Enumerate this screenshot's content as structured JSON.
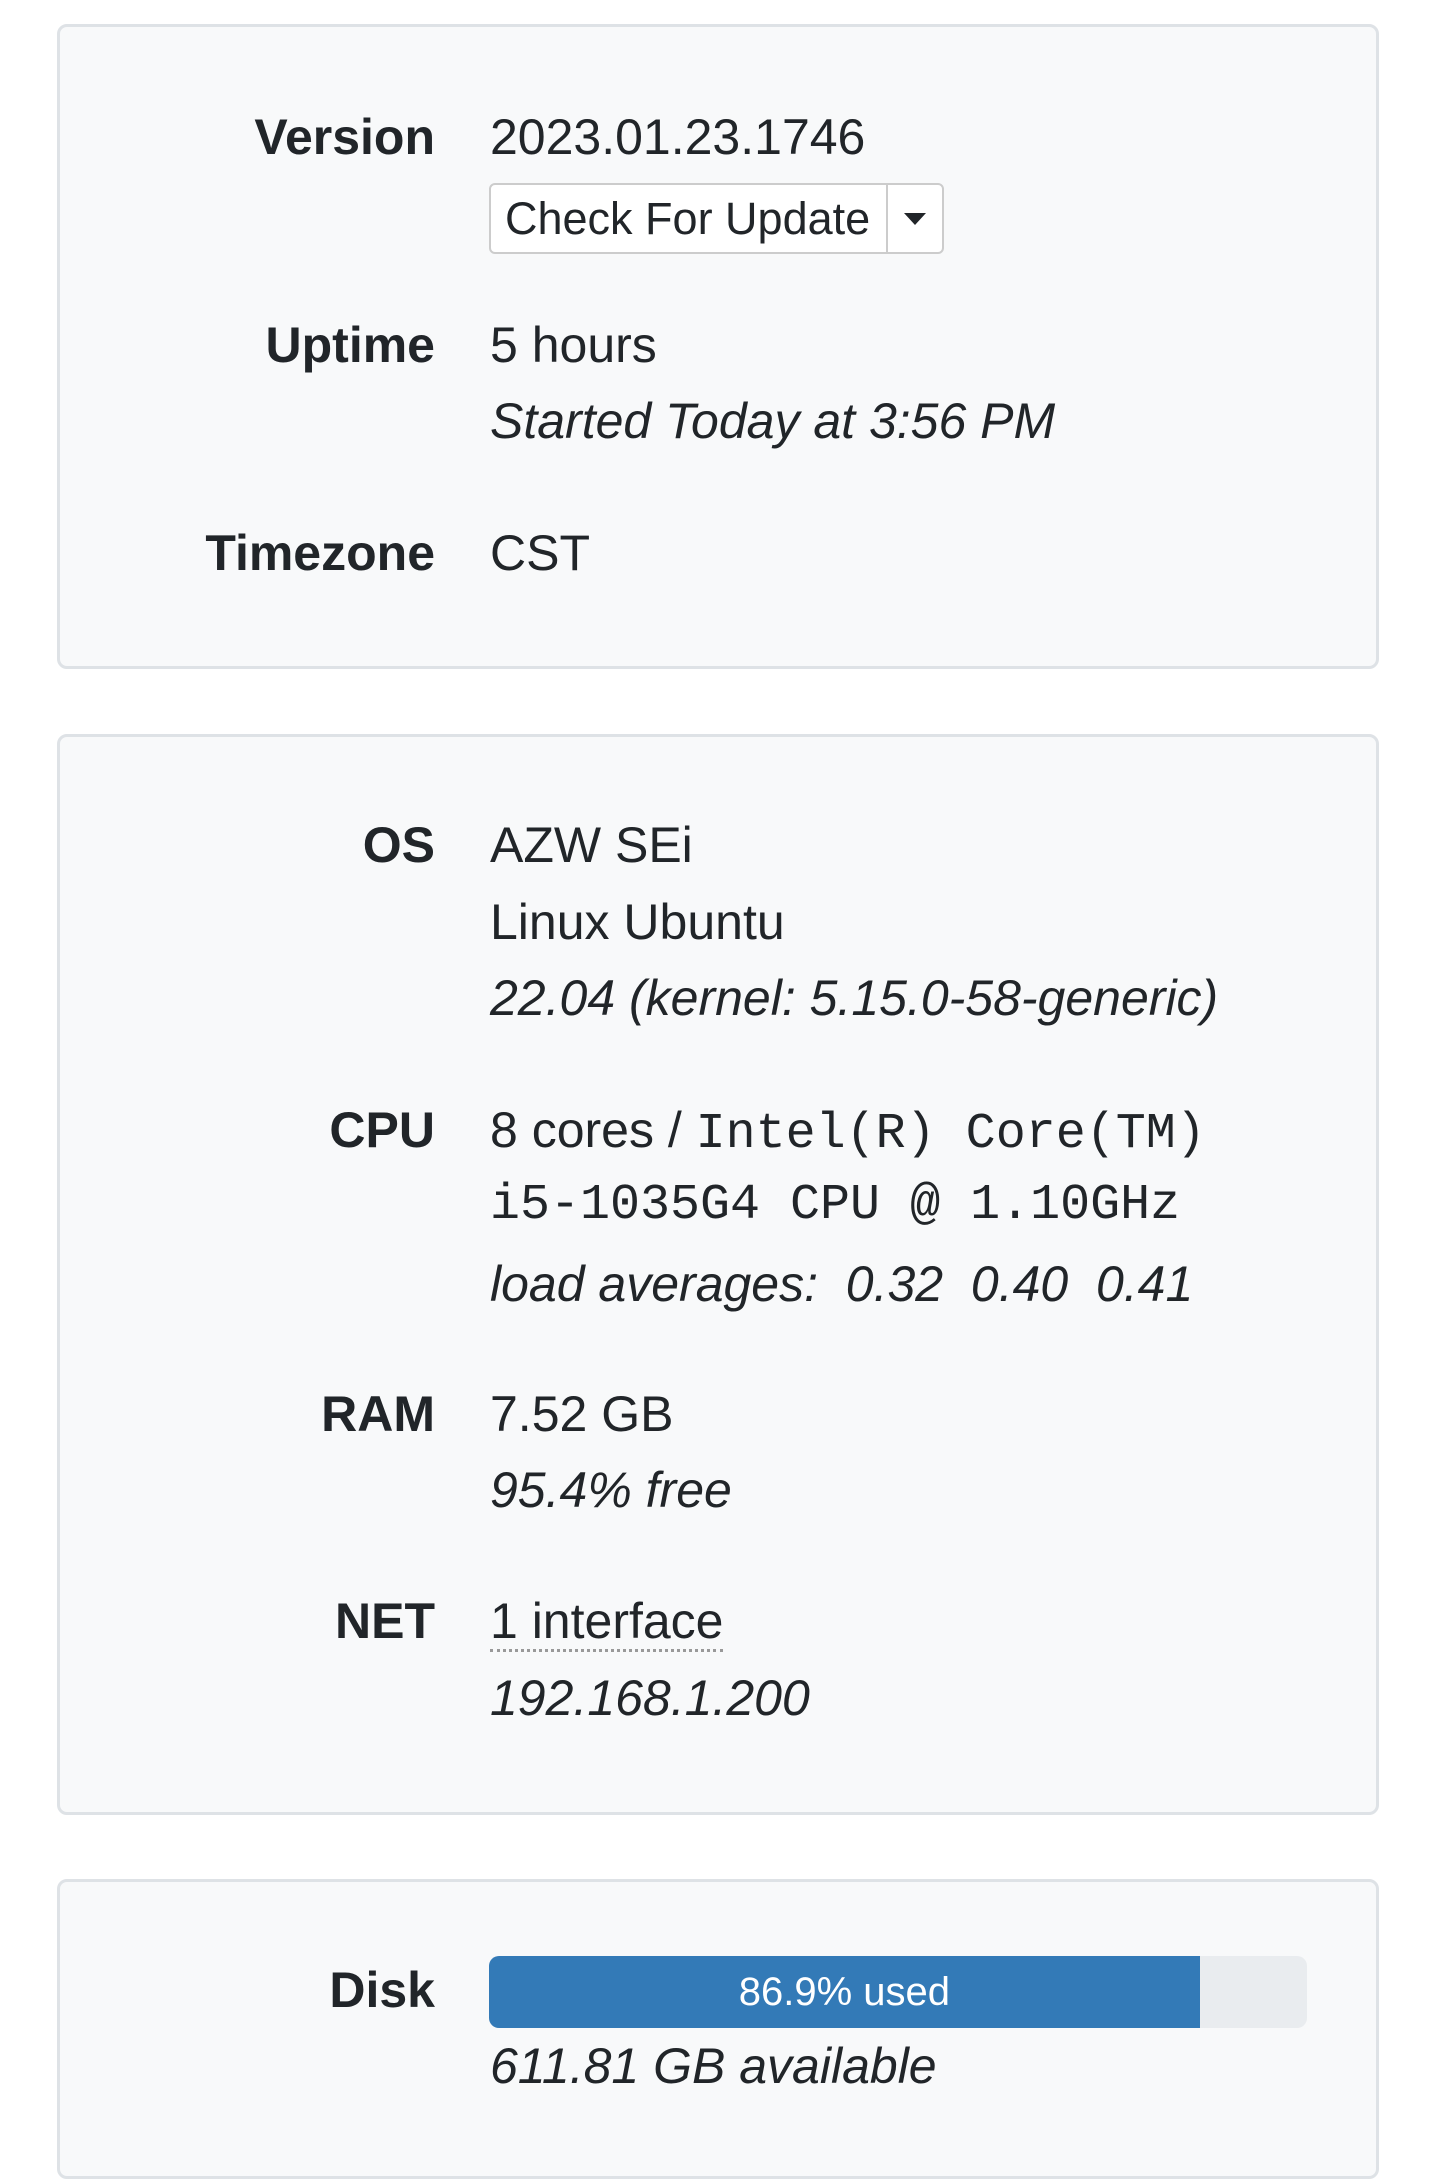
{
  "about": {
    "version_label": "Version",
    "version_value": "2023.01.23.1746",
    "check_update_label": "Check For Update",
    "uptime_label": "Uptime",
    "uptime_value": "5 hours",
    "uptime_started": "Started Today at 3:56 PM",
    "timezone_label": "Timezone",
    "timezone_value": "CST"
  },
  "system": {
    "os_label": "OS",
    "os_host": "AZW SEi",
    "os_name": "Linux Ubuntu",
    "os_version": "22.04 (kernel: 5.15.0-58-generic)",
    "cpu_label": "CPU",
    "cpu_cores": "8 cores / ",
    "cpu_model_1": "Intel(R) Core(TM)",
    "cpu_model_2": "i5-1035G4 CPU @ 1.10GHz",
    "cpu_load": "load averages:  0.32  0.40  0.41",
    "ram_label": "RAM",
    "ram_total": "7.52 GB",
    "ram_free": "95.4% free",
    "net_label": "NET",
    "net_interfaces": "1 interface",
    "net_ip": "192.168.1.200"
  },
  "storage": {
    "disk_label": "Disk",
    "disk_used_percent": 86.9,
    "disk_used_text": "86.9% used",
    "disk_available": "611.81 GB available",
    "bar_color": "#337ab7",
    "track_color": "#e9ecef"
  }
}
